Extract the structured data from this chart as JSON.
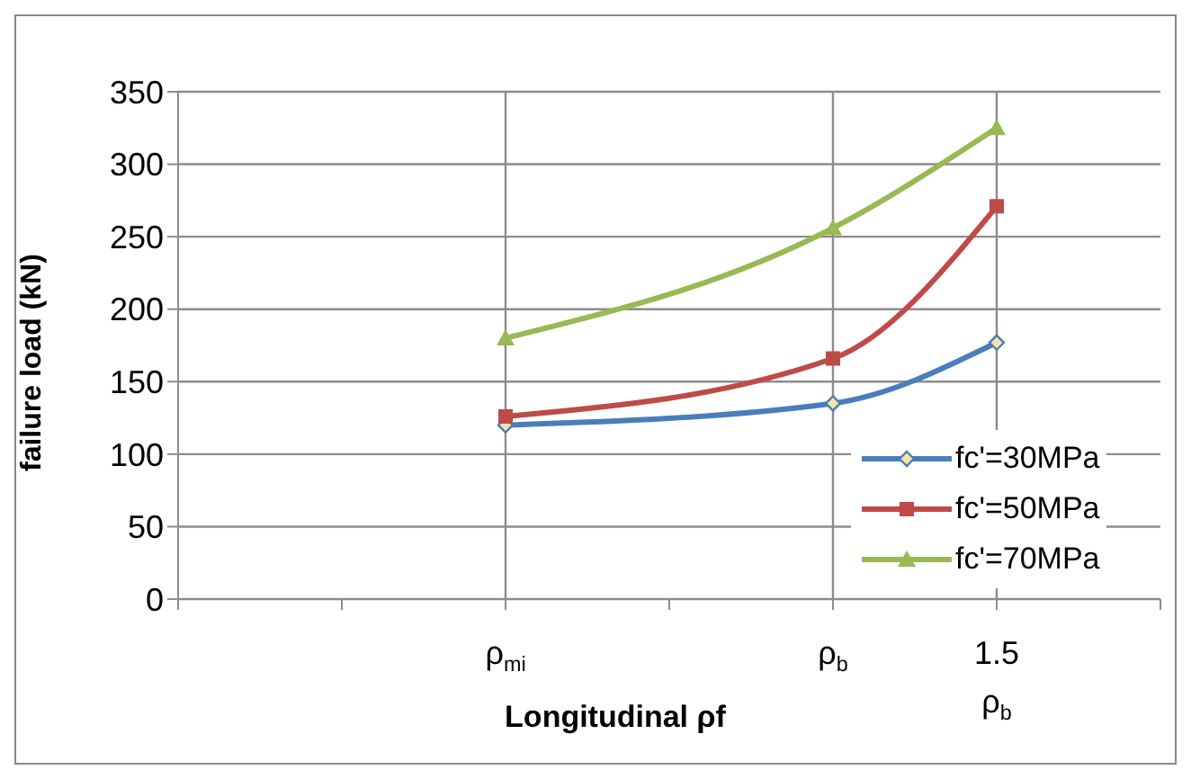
{
  "chart_data": {
    "type": "line",
    "xlabel": "Longitudinal ρf",
    "ylabel": "failure load (kN)",
    "categories": [
      null,
      null,
      "ρ$_{mi}$",
      null,
      "ρ$_{b}$",
      "1.5 ρ$_{b}$",
      null
    ],
    "series": [
      {
        "name": "fc'=30MPa",
        "color": "#4a7ebb",
        "marker": "diamond",
        "values": [
          null,
          null,
          120,
          null,
          135,
          177,
          null
        ]
      },
      {
        "name": "fc'=50MPa",
        "color": "#be4b48",
        "marker": "square",
        "values": [
          null,
          null,
          126,
          null,
          166,
          271,
          null
        ]
      },
      {
        "name": "fc'=70MPa",
        "color": "#98b954",
        "marker": "triangle",
        "values": [
          null,
          null,
          180,
          null,
          256,
          325,
          null
        ]
      }
    ],
    "ylim": [
      0,
      350
    ],
    "yticks": [
      0,
      50,
      100,
      150,
      200,
      250,
      300,
      350
    ],
    "grid": true,
    "legend": "bottom right"
  }
}
